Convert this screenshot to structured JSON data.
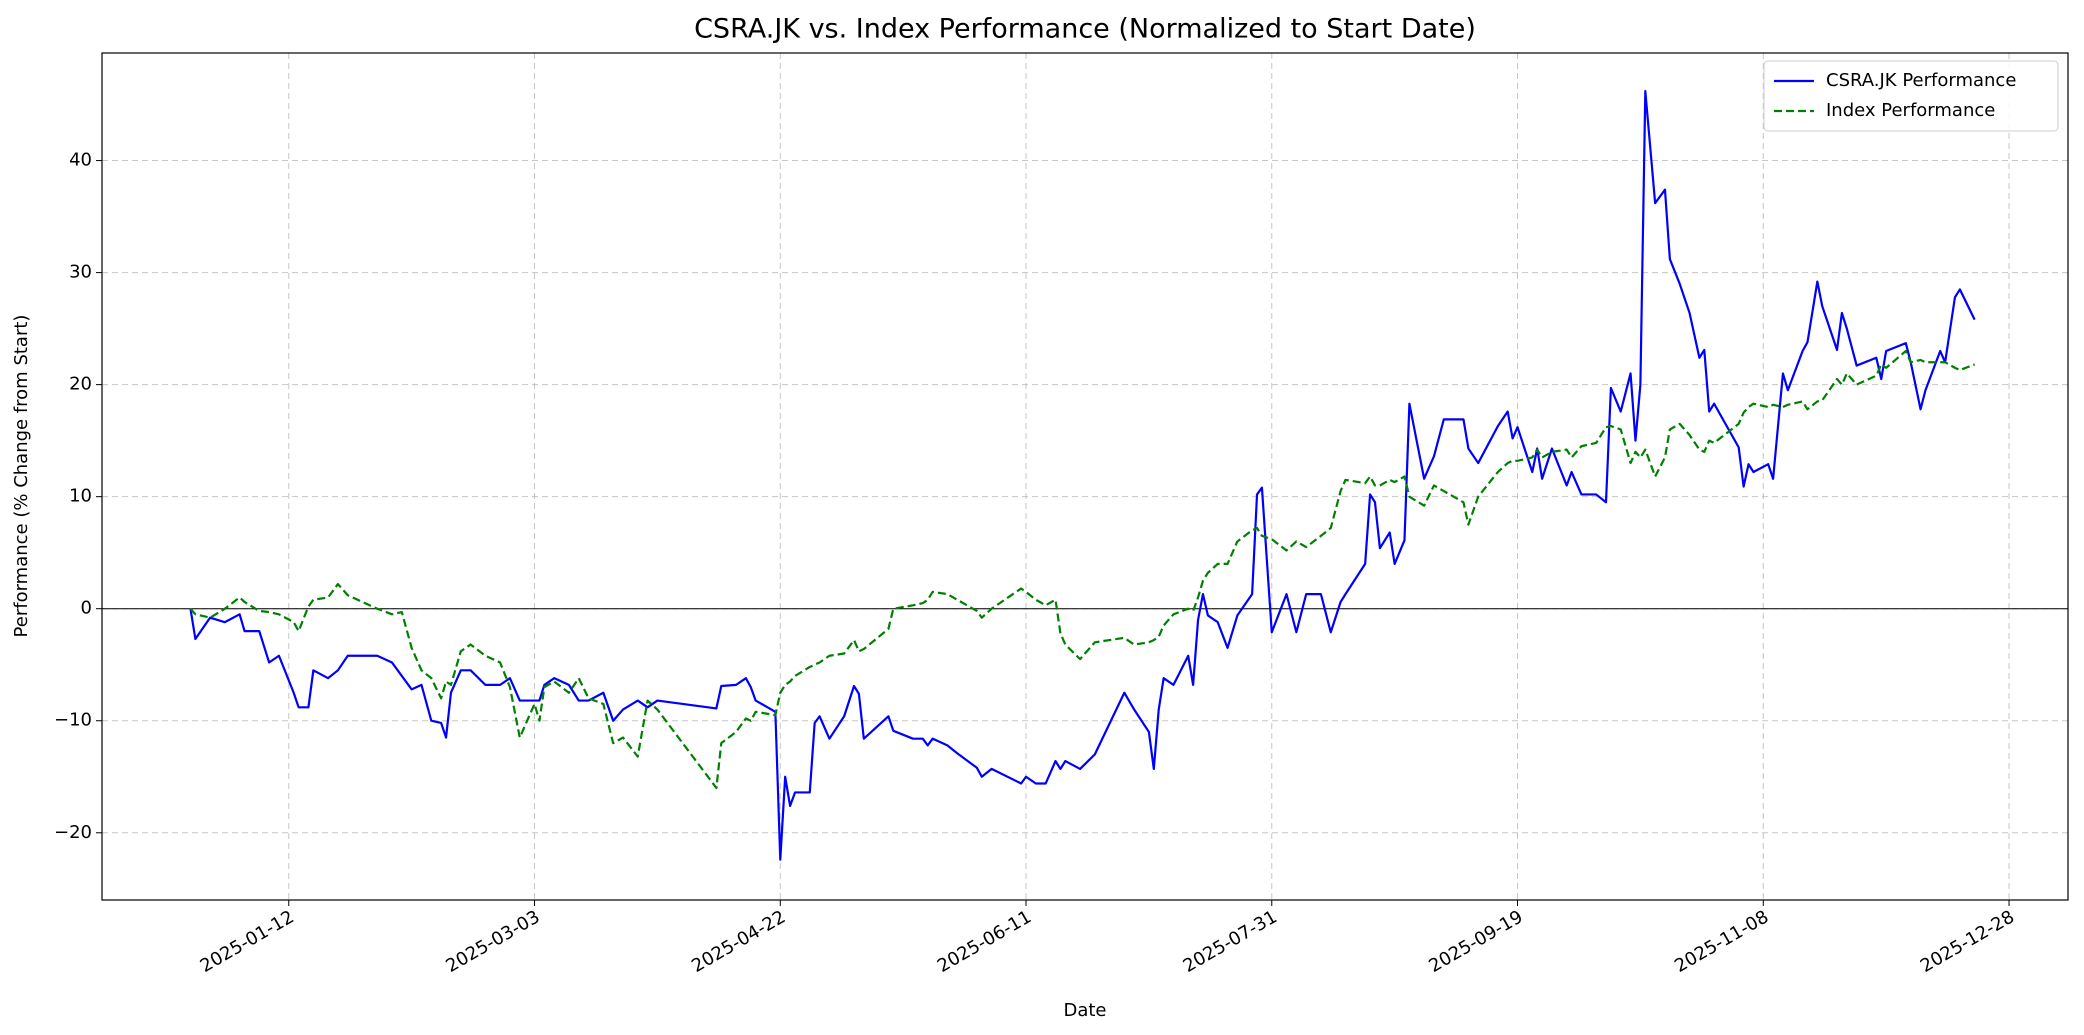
{
  "chart_data": {
    "type": "line",
    "title": "CSRA.JK vs. Index Performance (Normalized to Start Date)",
    "x_label": "Date",
    "y_label": "Performance (% Change from Start)",
    "x": [
      "2024-12-23",
      "2024-12-24",
      "2024-12-27",
      "2024-12-30",
      "2025-01-02",
      "2025-01-03",
      "2025-01-06",
      "2025-01-08",
      "2025-01-10",
      "2025-01-13",
      "2025-01-14",
      "2025-01-16",
      "2025-01-17",
      "2025-01-20",
      "2025-01-22",
      "2025-01-24",
      "2025-01-30",
      "2025-02-02",
      "2025-02-04",
      "2025-02-06",
      "2025-02-08",
      "2025-02-10",
      "2025-02-12",
      "2025-02-13",
      "2025-02-14",
      "2025-02-16",
      "2025-02-18",
      "2025-02-21",
      "2025-02-24",
      "2025-02-26",
      "2025-02-28",
      "2025-03-03",
      "2025-03-04",
      "2025-03-05",
      "2025-03-07",
      "2025-03-10",
      "2025-03-12",
      "2025-03-14",
      "2025-03-17",
      "2025-03-19",
      "2025-03-21",
      "2025-03-24",
      "2025-03-26",
      "2025-03-28",
      "2025-04-09",
      "2025-04-10",
      "2025-04-13",
      "2025-04-15",
      "2025-04-16",
      "2025-04-17",
      "2025-04-21",
      "2025-04-22",
      "2025-04-23",
      "2025-04-24",
      "2025-04-25",
      "2025-04-28",
      "2025-04-29",
      "2025-04-30",
      "2025-05-02",
      "2025-05-05",
      "2025-05-07",
      "2025-05-08",
      "2025-05-09",
      "2025-05-14",
      "2025-05-15",
      "2025-05-19",
      "2025-05-21",
      "2025-05-22",
      "2025-05-23",
      "2025-05-26",
      "2025-05-28",
      "2025-06-01",
      "2025-06-02",
      "2025-06-04",
      "2025-06-10",
      "2025-06-11",
      "2025-06-13",
      "2025-06-15",
      "2025-06-17",
      "2025-06-18",
      "2025-06-19",
      "2025-06-22",
      "2025-06-25",
      "2025-07-01",
      "2025-07-03",
      "2025-07-06",
      "2025-07-07",
      "2025-07-08",
      "2025-07-09",
      "2025-07-11",
      "2025-07-14",
      "2025-07-15",
      "2025-07-16",
      "2025-07-17",
      "2025-07-18",
      "2025-07-20",
      "2025-07-22",
      "2025-07-24",
      "2025-07-27",
      "2025-07-28",
      "2025-07-29",
      "2025-07-31",
      "2025-08-03",
      "2025-08-05",
      "2025-08-07",
      "2025-08-10",
      "2025-08-12",
      "2025-08-14",
      "2025-08-15",
      "2025-08-19",
      "2025-08-20",
      "2025-08-21",
      "2025-08-22",
      "2025-08-24",
      "2025-08-25",
      "2025-08-27",
      "2025-08-28",
      "2025-08-31",
      "2025-09-02",
      "2025-09-04",
      "2025-09-08",
      "2025-09-09",
      "2025-09-11",
      "2025-09-15",
      "2025-09-17",
      "2025-09-18",
      "2025-09-19",
      "2025-09-22",
      "2025-09-23",
      "2025-09-24",
      "2025-09-26",
      "2025-09-29",
      "2025-09-30",
      "2025-10-02",
      "2025-10-05",
      "2025-10-07",
      "2025-10-08",
      "2025-10-10",
      "2025-10-12",
      "2025-10-13",
      "2025-10-14",
      "2025-10-15",
      "2025-10-17",
      "2025-10-19",
      "2025-10-20",
      "2025-10-22",
      "2025-10-24",
      "2025-10-26",
      "2025-10-27",
      "2025-10-28",
      "2025-10-29",
      "2025-11-03",
      "2025-11-04",
      "2025-11-05",
      "2025-11-06",
      "2025-11-09",
      "2025-11-10",
      "2025-11-12",
      "2025-11-13",
      "2025-11-16",
      "2025-11-17",
      "2025-11-19",
      "2025-11-20",
      "2025-11-23",
      "2025-11-24",
      "2025-11-25",
      "2025-11-27",
      "2025-12-01",
      "2025-12-02",
      "2025-12-03",
      "2025-12-07",
      "2025-12-08",
      "2025-12-10",
      "2025-12-11",
      "2025-12-14",
      "2025-12-15",
      "2025-12-17",
      "2025-12-18",
      "2025-12-21"
    ],
    "series": [
      {
        "name": "CSRA.JK Performance",
        "color": "#0000ff",
        "dash": "solid",
        "values": [
          0,
          -2.7,
          -0.8,
          -1.2,
          -0.5,
          -2,
          -2,
          -4.8,
          -4.2,
          -7.5,
          -8.8,
          -8.8,
          -5.5,
          -6.2,
          -5.5,
          -4.2,
          -4.2,
          -4.8,
          -6.0,
          -7.2,
          -6.8,
          -10.0,
          -10.2,
          -11.5,
          -7.5,
          -5.5,
          -5.5,
          -6.8,
          -6.8,
          -6.2,
          -8.2,
          -8.2,
          -8.2,
          -6.8,
          -6.2,
          -6.8,
          -8.2,
          -8.2,
          -7.5,
          -10.0,
          -9.0,
          -8.2,
          -8.8,
          -8.2,
          -8.9,
          -6.9,
          -6.8,
          -6.2,
          -7.0,
          -8.2,
          -9.2,
          -22.4,
          -15,
          -17.6,
          -16.4,
          -16.4,
          -10.2,
          -9.6,
          -11.6,
          -9.6,
          -6.9,
          -7.6,
          -11.6,
          -9.6,
          -10.9,
          -11.6,
          -11.6,
          -12.2,
          -11.6,
          -12.2,
          -12.9,
          -14.2,
          -15.0,
          -14.3,
          -15.6,
          -15.0,
          -15.6,
          -15.6,
          -13.6,
          -14.3,
          -13.6,
          -14.3,
          -13,
          -7.5,
          -9,
          -11,
          -14.3,
          -9,
          -6.2,
          -6.8,
          -4.2,
          -6.8,
          -1,
          1.3,
          -0.6,
          -1.2,
          -3.5,
          -0.6,
          1.3,
          10.2,
          10.8,
          -2.1,
          1.3,
          -2.1,
          1.3,
          1.3,
          -2.1,
          0.6,
          1.3,
          4,
          10.2,
          9.5,
          5.4,
          6.8,
          4.0,
          6.1,
          18.3,
          11.6,
          13.6,
          16.9,
          16.9,
          14.3,
          13,
          16.3,
          17.6,
          15.2,
          16.2,
          12.2,
          14.3,
          11.6,
          14.3,
          11.0,
          12.2,
          10.2,
          10.2,
          9.5,
          19.7,
          17.6,
          21.0,
          15.0,
          20,
          46.2,
          36.2,
          37.4,
          31.2,
          29,
          26.4,
          22.4,
          23.1,
          17.6,
          18.3,
          14.4,
          10.9,
          12.9,
          12.2,
          12.9,
          11.6,
          21.0,
          19.5,
          23.0,
          23.8,
          29.2,
          27,
          23.1,
          26.4,
          25,
          21.7,
          22.4,
          20.5,
          23,
          23.7,
          22,
          17.8,
          19.5,
          23,
          22,
          27.8,
          28.5,
          25.8
        ]
      },
      {
        "name": "Index Performance",
        "color": "#008000",
        "dash": "dashed",
        "values": [
          0,
          -0.5,
          -0.8,
          0,
          1.0,
          0.6,
          -0.2,
          -0.3,
          -0.5,
          -1.2,
          -2,
          0.2,
          0.8,
          1.0,
          2.2,
          1.2,
          0,
          -0.5,
          -0.3,
          -3.5,
          -5.5,
          -6.2,
          -8,
          -6.5,
          -6.8,
          -3.8,
          -3.2,
          -4.2,
          -4.8,
          -7,
          -11.5,
          -8.5,
          -10,
          -7,
          -6.5,
          -7.5,
          -6.2,
          -8,
          -8.5,
          -12,
          -11.5,
          -13.2,
          -8.2,
          -9,
          -16,
          -12,
          -11,
          -9.8,
          -10,
          -9.2,
          -9.5,
          -7.5,
          -6.8,
          -6.5,
          -6,
          -5.2,
          -5,
          -4.8,
          -4.2,
          -4,
          -2.8,
          -3.8,
          -3.6,
          -1.8,
          0,
          0.3,
          0.5,
          0.8,
          1.5,
          1.3,
          0.8,
          -0.2,
          -0.8,
          0,
          1.8,
          1.5,
          0.8,
          0.3,
          0.8,
          -2.2,
          -3.2,
          -4.5,
          -3,
          -2.6,
          -3.2,
          -3,
          -2.8,
          -2.5,
          -1.5,
          -0.5,
          0,
          -0.2,
          1.0,
          2.5,
          3.2,
          4,
          4,
          6,
          7,
          7.2,
          6.5,
          6.2,
          5.2,
          6,
          5.5,
          6.5,
          7.2,
          10.5,
          11.5,
          11.2,
          11.8,
          11,
          11,
          11.5,
          11.3,
          11.8,
          10,
          9.2,
          11,
          10.5,
          9.5,
          7.5,
          10,
          12.2,
          13,
          13.2,
          13.2,
          13.5,
          14.2,
          13.5,
          14,
          14.2,
          13.5,
          14.5,
          14.8,
          16.2,
          16.3,
          16.0,
          13,
          14,
          13.5,
          14.2,
          11.8,
          13.5,
          16,
          16.5,
          15.5,
          14.2,
          14,
          15,
          14.8,
          16.5,
          17.5,
          18.0,
          18.3,
          18.0,
          18.2,
          18,
          18.2,
          18.5,
          17.8,
          18.5,
          18.6,
          20.5,
          20,
          21,
          20,
          20.8,
          21.8,
          21.5,
          23,
          22,
          22.2,
          22,
          22,
          22,
          21.5,
          21.3,
          21.8
        ]
      }
    ],
    "xlim": [
      "2024-12-05",
      "2026-01-09"
    ],
    "xticks": [
      "2025-01-12",
      "2025-03-03",
      "2025-04-22",
      "2025-06-11",
      "2025-07-31",
      "2025-09-19",
      "2025-11-08",
      "2025-12-28"
    ],
    "ylim": [
      -26,
      49.6
    ],
    "yticks": [
      {
        "value": -20,
        "label": "−20"
      },
      {
        "value": -10,
        "label": "−10"
      },
      0,
      10,
      20,
      30,
      40
    ],
    "zero_line": true,
    "grid": true,
    "legend": "upper-right"
  }
}
